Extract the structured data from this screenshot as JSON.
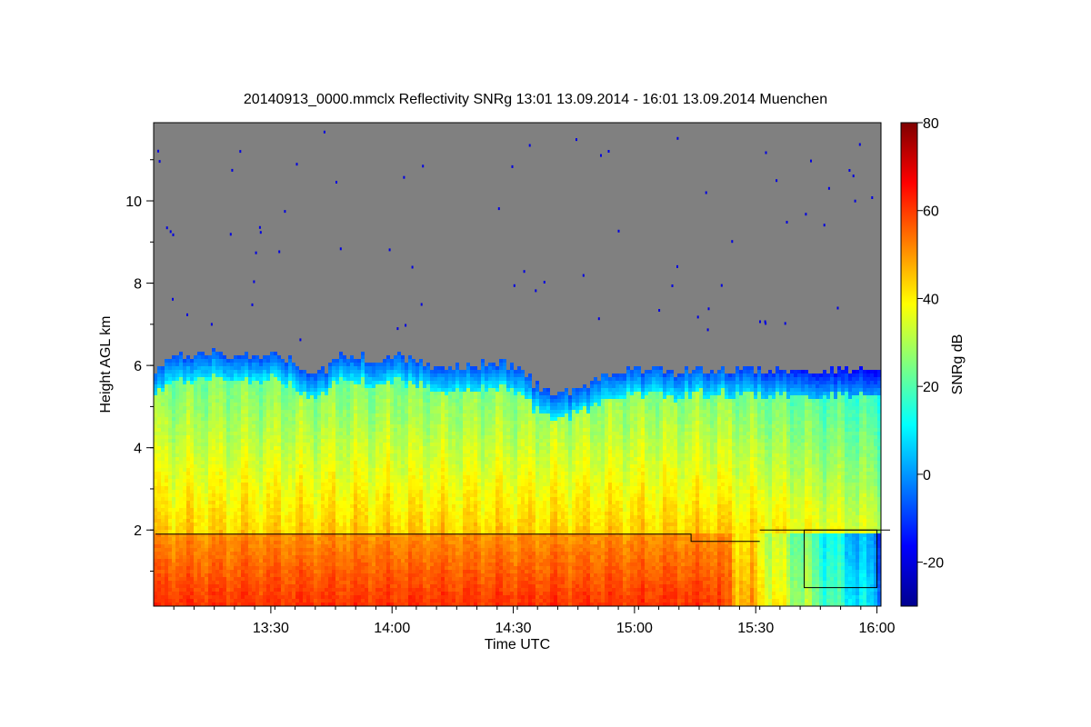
{
  "chart_data": {
    "type": "heatmap",
    "title": "20140913_0000.mmclx Reflectivity SNRg   13:01 13.09.2014 - 16:01 13.09.2014 Muenchen",
    "xlabel": "Time UTC",
    "ylabel": "Height AGL km",
    "colorbar_label": "SNRg dB",
    "x_range": [
      "13:01",
      "16:01"
    ],
    "y_range_km": [
      0.15,
      11.9
    ],
    "x_ticks": [
      {
        "label": "13:30",
        "minutes": 29
      },
      {
        "label": "14:00",
        "minutes": 59
      },
      {
        "label": "14:30",
        "minutes": 89
      },
      {
        "label": "15:00",
        "minutes": 119
      },
      {
        "label": "15:30",
        "minutes": 149
      },
      {
        "label": "16:00",
        "minutes": 179
      }
    ],
    "y_ticks": [
      {
        "label": "2",
        "value": 2
      },
      {
        "label": "4",
        "value": 4
      },
      {
        "label": "6",
        "value": 6
      },
      {
        "label": "8",
        "value": 8
      },
      {
        "label": "10",
        "value": 10
      }
    ],
    "colorbar_range": [
      -30,
      80
    ],
    "colorbar_ticks": [
      {
        "label": "-20",
        "value": -20
      },
      {
        "label": "0",
        "value": 0
      },
      {
        "label": "20",
        "value": 20
      },
      {
        "label": "40",
        "value": 40
      },
      {
        "label": "60",
        "value": 60
      },
      {
        "label": "80",
        "value": 80
      }
    ],
    "colormap": [
      "#00008f",
      "#0000ff",
      "#007fff",
      "#00ffff",
      "#7fff7f",
      "#ffff00",
      "#ff7f00",
      "#ff0000",
      "#7f0000"
    ],
    "no_signal_color": "#808080",
    "cloud_top_profile": [
      {
        "t": 0,
        "top_km": 5.95
      },
      {
        "t": 5,
        "top_km": 6.2
      },
      {
        "t": 10,
        "top_km": 6.25
      },
      {
        "t": 15,
        "top_km": 6.3
      },
      {
        "t": 20,
        "top_km": 6.25
      },
      {
        "t": 25,
        "top_km": 6.2
      },
      {
        "t": 30,
        "top_km": 6.25
      },
      {
        "t": 35,
        "top_km": 6.1
      },
      {
        "t": 40,
        "top_km": 5.7
      },
      {
        "t": 45,
        "top_km": 6.15
      },
      {
        "t": 50,
        "top_km": 6.3
      },
      {
        "t": 55,
        "top_km": 6.1
      },
      {
        "t": 60,
        "top_km": 6.2
      },
      {
        "t": 65,
        "top_km": 6.15
      },
      {
        "t": 70,
        "top_km": 6.0
      },
      {
        "t": 75,
        "top_km": 5.95
      },
      {
        "t": 80,
        "top_km": 6.0
      },
      {
        "t": 85,
        "top_km": 6.1
      },
      {
        "t": 90,
        "top_km": 5.95
      },
      {
        "t": 95,
        "top_km": 5.5
      },
      {
        "t": 100,
        "top_km": 5.3
      },
      {
        "t": 105,
        "top_km": 5.4
      },
      {
        "t": 110,
        "top_km": 5.7
      },
      {
        "t": 115,
        "top_km": 5.9
      },
      {
        "t": 120,
        "top_km": 5.85
      },
      {
        "t": 125,
        "top_km": 5.9
      },
      {
        "t": 130,
        "top_km": 5.85
      },
      {
        "t": 135,
        "top_km": 5.9
      },
      {
        "t": 140,
        "top_km": 5.9
      },
      {
        "t": 145,
        "top_km": 5.85
      },
      {
        "t": 150,
        "top_km": 5.9
      },
      {
        "t": 155,
        "top_km": 5.85
      },
      {
        "t": 160,
        "top_km": 5.9
      },
      {
        "t": 165,
        "top_km": 5.9
      },
      {
        "t": 170,
        "top_km": 5.9
      },
      {
        "t": 175,
        "top_km": 5.9
      },
      {
        "t": 180,
        "top_km": 5.9
      }
    ],
    "melting_layer_km": 1.9,
    "rain_end_min": 140,
    "overlay_box": {
      "t_start": 161,
      "t_end": 179,
      "km_bottom": 0.6,
      "km_top": 2.0
    }
  }
}
